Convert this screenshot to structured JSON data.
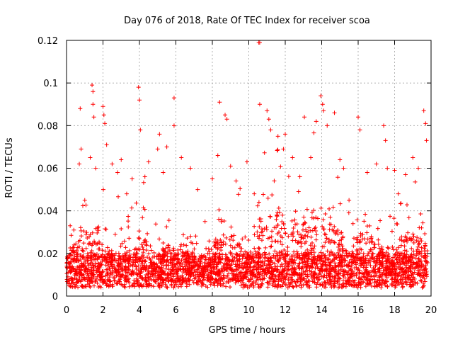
{
  "chart_data": {
    "type": "scatter",
    "title": "Day 076 of 2018, Rate Of TEC Index for receiver scoa",
    "xlabel": "GPS time / hours",
    "ylabel": "ROTI / TECUs",
    "xlim": [
      0,
      20
    ],
    "ylim": [
      0,
      0.12
    ],
    "xticks": [
      0,
      2,
      4,
      6,
      8,
      10,
      12,
      14,
      16,
      18,
      20
    ],
    "xtick_labels": [
      "0",
      "2",
      "4",
      "6",
      "8",
      "10",
      "12",
      "14",
      "16",
      "18",
      "20"
    ],
    "yticks": [
      0,
      0.02,
      0.04,
      0.06,
      0.08,
      0.1,
      0.12
    ],
    "ytick_labels": [
      "0",
      "0.02",
      "0.04",
      "0.06",
      "0.08",
      "0.1",
      "0.12"
    ],
    "grid": true,
    "marker": "+",
    "marker_color": "#ff0000",
    "data_range_hours": [
      0,
      19.8
    ],
    "series": [
      {
        "name": "ROTI",
        "points": [
          [
            0.2,
            0.033
          ],
          [
            0.4,
            0.031
          ],
          [
            0.7,
            0.062
          ],
          [
            0.75,
            0.088
          ],
          [
            0.8,
            0.069
          ],
          [
            1.0,
            0.045
          ],
          [
            1.3,
            0.065
          ],
          [
            1.4,
            0.099
          ],
          [
            1.45,
            0.096
          ],
          [
            1.45,
            0.09
          ],
          [
            1.5,
            0.084
          ],
          [
            1.6,
            0.06
          ],
          [
            2.0,
            0.089
          ],
          [
            2.05,
            0.085
          ],
          [
            2.1,
            0.081
          ],
          [
            2.2,
            0.071
          ],
          [
            2.5,
            0.062
          ],
          [
            2.8,
            0.058
          ],
          [
            3.0,
            0.064
          ],
          [
            3.3,
            0.048
          ],
          [
            3.6,
            0.055
          ],
          [
            3.95,
            0.098
          ],
          [
            4.0,
            0.092
          ],
          [
            4.05,
            0.078
          ],
          [
            4.3,
            0.056
          ],
          [
            4.5,
            0.063
          ],
          [
            5.0,
            0.069
          ],
          [
            5.1,
            0.076
          ],
          [
            5.3,
            0.058
          ],
          [
            5.5,
            0.07
          ],
          [
            5.9,
            0.093
          ],
          [
            5.9,
            0.08
          ],
          [
            6.3,
            0.065
          ],
          [
            6.8,
            0.06
          ],
          [
            7.2,
            0.05
          ],
          [
            7.6,
            0.035
          ],
          [
            8.0,
            0.055
          ],
          [
            8.3,
            0.066
          ],
          [
            8.4,
            0.091
          ],
          [
            8.7,
            0.085
          ],
          [
            8.8,
            0.083
          ],
          [
            9.0,
            0.061
          ],
          [
            9.3,
            0.054
          ],
          [
            9.9,
            0.063
          ],
          [
            10.3,
            0.048
          ],
          [
            10.55,
            0.119
          ],
          [
            10.6,
            0.119
          ],
          [
            10.6,
            0.09
          ],
          [
            11.0,
            0.087
          ],
          [
            11.1,
            0.083
          ],
          [
            11.2,
            0.078
          ],
          [
            11.6,
            0.075
          ],
          [
            11.9,
            0.069
          ],
          [
            12.0,
            0.076
          ],
          [
            12.4,
            0.065
          ],
          [
            12.8,
            0.056
          ],
          [
            13.05,
            0.084
          ],
          [
            13.4,
            0.065
          ],
          [
            13.7,
            0.082
          ],
          [
            13.95,
            0.094
          ],
          [
            14.05,
            0.09
          ],
          [
            14.1,
            0.087
          ],
          [
            14.3,
            0.08
          ],
          [
            14.7,
            0.086
          ],
          [
            15.0,
            0.064
          ],
          [
            15.2,
            0.06
          ],
          [
            15.5,
            0.045
          ],
          [
            16.0,
            0.084
          ],
          [
            16.1,
            0.078
          ],
          [
            16.5,
            0.058
          ],
          [
            17.0,
            0.062
          ],
          [
            17.4,
            0.08
          ],
          [
            17.5,
            0.073
          ],
          [
            17.6,
            0.06
          ],
          [
            18.0,
            0.059
          ],
          [
            18.2,
            0.048
          ],
          [
            18.6,
            0.057
          ],
          [
            19.0,
            0.065
          ],
          [
            19.3,
            0.06
          ],
          [
            19.6,
            0.087
          ],
          [
            19.7,
            0.081
          ],
          [
            19.75,
            0.073
          ]
        ]
      }
    ]
  }
}
